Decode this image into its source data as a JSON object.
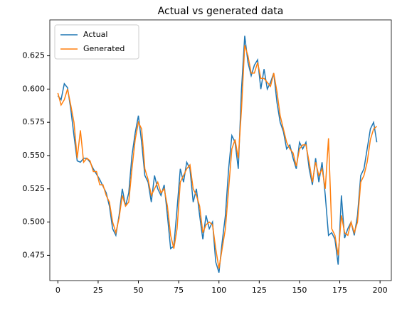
{
  "chart_data": {
    "type": "line",
    "title": "Actual vs generated data",
    "x": [
      0,
      2,
      4,
      6,
      8,
      10,
      12,
      14,
      16,
      18,
      20,
      22,
      24,
      26,
      28,
      30,
      32,
      34,
      36,
      38,
      40,
      42,
      44,
      46,
      48,
      50,
      52,
      54,
      56,
      58,
      60,
      62,
      64,
      66,
      68,
      70,
      72,
      74,
      76,
      78,
      80,
      82,
      84,
      86,
      88,
      90,
      92,
      94,
      96,
      98,
      100,
      102,
      104,
      106,
      108,
      110,
      112,
      114,
      116,
      118,
      120,
      122,
      124,
      126,
      128,
      130,
      132,
      134,
      136,
      138,
      140,
      142,
      144,
      146,
      148,
      150,
      152,
      154,
      156,
      158,
      160,
      162,
      164,
      166,
      168,
      170,
      172,
      174,
      176,
      178,
      180,
      182,
      184,
      186,
      188,
      190,
      192,
      194,
      196,
      198
    ],
    "series": [
      {
        "name": "Actual",
        "color": "#1f77b4",
        "values": [
          0.595,
          0.592,
          0.604,
          0.601,
          0.585,
          0.565,
          0.546,
          0.545,
          0.548,
          0.548,
          0.545,
          0.54,
          0.536,
          0.532,
          0.527,
          0.522,
          0.512,
          0.495,
          0.49,
          0.505,
          0.525,
          0.512,
          0.522,
          0.55,
          0.567,
          0.58,
          0.56,
          0.535,
          0.53,
          0.515,
          0.535,
          0.525,
          0.52,
          0.528,
          0.505,
          0.48,
          0.482,
          0.51,
          0.54,
          0.53,
          0.545,
          0.54,
          0.515,
          0.525,
          0.505,
          0.487,
          0.505,
          0.495,
          0.5,
          0.47,
          0.462,
          0.485,
          0.505,
          0.54,
          0.565,
          0.56,
          0.54,
          0.6,
          0.64,
          0.62,
          0.61,
          0.618,
          0.622,
          0.6,
          0.615,
          0.6,
          0.605,
          0.612,
          0.59,
          0.575,
          0.568,
          0.555,
          0.558,
          0.548,
          0.54,
          0.56,
          0.555,
          0.56,
          0.54,
          0.528,
          0.548,
          0.53,
          0.545,
          0.52,
          0.49,
          0.492,
          0.487,
          0.468,
          0.52,
          0.488,
          0.495,
          0.5,
          0.49,
          0.505,
          0.535,
          0.54,
          0.555,
          0.57,
          0.575,
          0.56
        ]
      },
      {
        "name": "Generated",
        "color": "#ff7f0e",
        "values": [
          0.597,
          0.588,
          0.592,
          0.6,
          0.588,
          0.575,
          0.548,
          0.569,
          0.545,
          0.548,
          0.546,
          0.538,
          0.538,
          0.528,
          0.528,
          0.52,
          0.515,
          0.5,
          0.492,
          0.503,
          0.52,
          0.512,
          0.515,
          0.54,
          0.562,
          0.575,
          0.57,
          0.54,
          0.532,
          0.52,
          0.525,
          0.53,
          0.522,
          0.525,
          0.512,
          0.49,
          0.48,
          0.495,
          0.53,
          0.535,
          0.54,
          0.543,
          0.525,
          0.52,
          0.512,
          0.492,
          0.498,
          0.5,
          0.498,
          0.48,
          0.465,
          0.48,
          0.495,
          0.525,
          0.555,
          0.562,
          0.548,
          0.585,
          0.633,
          0.625,
          0.612,
          0.612,
          0.62,
          0.608,
          0.608,
          0.605,
          0.602,
          0.612,
          0.598,
          0.58,
          0.57,
          0.56,
          0.555,
          0.552,
          0.542,
          0.555,
          0.558,
          0.558,
          0.545,
          0.53,
          0.545,
          0.535,
          0.54,
          0.525,
          0.563,
          0.495,
          0.49,
          0.475,
          0.505,
          0.492,
          0.49,
          0.5,
          0.492,
          0.5,
          0.53,
          0.535,
          0.545,
          0.562,
          0.57,
          0.572
        ]
      }
    ],
    "xlim": [
      -5,
      207
    ],
    "xticks": [
      0,
      25,
      50,
      75,
      100,
      125,
      150,
      175,
      200
    ],
    "ylim": [
      0.456,
      0.652
    ],
    "yticks": [
      0.475,
      {
        "value": 0.5,
        "label": "0.500"
      },
      0.525,
      {
        "value": 0.55,
        "label": "0.550"
      },
      0.575,
      {
        "value": 0.6,
        "label": "0.600"
      },
      0.625
    ],
    "legend": "upper left"
  }
}
